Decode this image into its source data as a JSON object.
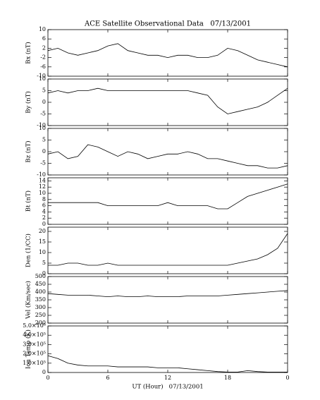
{
  "chart_data": [
    {
      "type": "line",
      "title": "ACE Satellite Observational Data   07/13/2001",
      "ylabel": "Bx (nT)",
      "x": [
        0,
        1,
        2,
        3,
        4,
        5,
        6,
        7,
        8,
        9,
        10,
        11,
        12,
        13,
        14,
        15,
        16,
        17,
        18,
        19,
        20,
        21,
        22,
        23,
        24
      ],
      "series": [
        {
          "color": "#000000",
          "values": [
            1,
            2,
            0,
            -1,
            0,
            1,
            3,
            4,
            1,
            0,
            -1,
            -1,
            -2,
            -1,
            -1,
            -2,
            -2,
            -1,
            2,
            1,
            -1,
            -3,
            -4,
            -5,
            -6
          ]
        }
      ],
      "xlim": [
        0,
        24
      ],
      "ylim": [
        -10,
        10
      ],
      "yticks": [
        -10,
        -6,
        -2,
        2,
        6,
        10
      ]
    },
    {
      "type": "line",
      "ylabel": "By (nT)",
      "x": [
        0,
        1,
        2,
        3,
        4,
        5,
        6,
        7,
        8,
        9,
        10,
        11,
        12,
        13,
        14,
        15,
        16,
        17,
        18,
        19,
        20,
        21,
        22,
        23,
        24
      ],
      "series": [
        {
          "color": "#000000",
          "values": [
            4,
            5,
            4,
            5,
            5,
            6,
            5,
            5,
            5,
            5,
            5,
            5,
            5,
            5,
            5,
            4,
            3,
            -2,
            -5,
            -4,
            -3,
            -2,
            0,
            3,
            6
          ]
        }
      ],
      "xlim": [
        0,
        24
      ],
      "ylim": [
        -10,
        10
      ],
      "yticks": [
        -10,
        -5,
        0,
        5,
        10
      ]
    },
    {
      "type": "line",
      "ylabel": "Bz (nT)",
      "x": [
        0,
        1,
        2,
        3,
        4,
        5,
        6,
        7,
        8,
        9,
        10,
        11,
        12,
        13,
        14,
        15,
        16,
        17,
        18,
        19,
        20,
        21,
        22,
        23,
        24
      ],
      "series": [
        {
          "color": "#000000",
          "values": [
            -1,
            0,
            -3,
            -2,
            3,
            2,
            0,
            -2,
            0,
            -1,
            -3,
            -2,
            -1,
            -1,
            0,
            -1,
            -3,
            -3,
            -4,
            -5,
            -6,
            -6,
            -7,
            -7,
            -6
          ]
        }
      ],
      "xlim": [
        0,
        24
      ],
      "ylim": [
        -10,
        10
      ],
      "yticks": [
        -10,
        -5,
        0,
        5,
        10
      ]
    },
    {
      "type": "line",
      "ylabel": "Bt (nT)",
      "x": [
        0,
        1,
        2,
        3,
        4,
        5,
        6,
        7,
        8,
        9,
        10,
        11,
        12,
        13,
        14,
        15,
        16,
        17,
        18,
        19,
        20,
        21,
        22,
        23,
        24
      ],
      "series": [
        {
          "color": "#000000",
          "values": [
            7,
            7,
            7,
            7,
            7,
            7,
            6,
            6,
            6,
            6,
            6,
            6,
            7,
            6,
            6,
            6,
            6,
            5,
            5,
            7,
            9,
            10,
            11,
            12,
            13
          ]
        }
      ],
      "xlim": [
        0,
        24
      ],
      "ylim": [
        0,
        15
      ],
      "yticks": [
        0,
        2,
        4,
        6,
        8,
        10,
        12,
        14
      ]
    },
    {
      "type": "line",
      "ylabel": "Den (1/CC)",
      "x": [
        0,
        1,
        2,
        3,
        4,
        5,
        6,
        7,
        8,
        9,
        10,
        11,
        12,
        13,
        14,
        15,
        16,
        17,
        18,
        19,
        20,
        21,
        22,
        23,
        24
      ],
      "series": [
        {
          "color": "#000000",
          "values": [
            4,
            4,
            5,
            5,
            4,
            4,
            5,
            4,
            4,
            4,
            4,
            4,
            4,
            4,
            4,
            4,
            4,
            4,
            4,
            5,
            6,
            7,
            9,
            12,
            19
          ]
        }
      ],
      "xlim": [
        0,
        24
      ],
      "ylim": [
        0,
        22
      ],
      "yticks": [
        0,
        5,
        10,
        15,
        20
      ]
    },
    {
      "type": "line",
      "ylabel": "Vel (Km/sec)",
      "x": [
        0,
        1,
        2,
        3,
        4,
        5,
        6,
        7,
        8,
        9,
        10,
        11,
        12,
        13,
        14,
        15,
        16,
        17,
        18,
        19,
        20,
        21,
        22,
        23,
        24
      ],
      "series": [
        {
          "color": "#000000",
          "values": [
            390,
            385,
            380,
            380,
            380,
            375,
            370,
            375,
            370,
            370,
            375,
            370,
            370,
            370,
            375,
            375,
            375,
            375,
            380,
            385,
            390,
            395,
            400,
            405,
            410
          ]
        }
      ],
      "xlim": [
        0,
        24
      ],
      "ylim": [
        200,
        500
      ],
      "yticks": [
        200,
        250,
        300,
        350,
        400,
        450,
        500
      ]
    },
    {
      "type": "line",
      "ylabel": "Ion Temp (K)",
      "xlabel": "UT (Hour)   07/13/2001",
      "x": [
        0,
        1,
        2,
        3,
        4,
        5,
        6,
        7,
        8,
        9,
        10,
        11,
        12,
        13,
        14,
        15,
        16,
        17,
        18,
        19,
        20,
        21,
        22,
        23,
        24
      ],
      "series": [
        {
          "color": "#000000",
          "values": [
            180000,
            150000,
            100000,
            80000,
            70000,
            70000,
            70000,
            60000,
            60000,
            60000,
            60000,
            50000,
            50000,
            50000,
            40000,
            30000,
            20000,
            10000,
            5000,
            5000,
            20000,
            10000,
            5000,
            5000,
            5000
          ]
        }
      ],
      "xlim": [
        0,
        24
      ],
      "ylim": [
        0,
        500000
      ],
      "yticks": [
        0,
        {
          "value": 100000,
          "label": "1.0×10⁵"
        },
        {
          "value": 200000,
          "label": "2.0×10⁵"
        },
        {
          "value": 300000,
          "label": "3.0×10⁵"
        },
        {
          "value": 400000,
          "label": "4.0×10⁵"
        },
        {
          "value": 500000,
          "label": "5.0×10⁵"
        }
      ],
      "xticks": [
        0,
        6,
        12,
        18,
        {
          "value": 24,
          "label": "0"
        }
      ]
    }
  ]
}
